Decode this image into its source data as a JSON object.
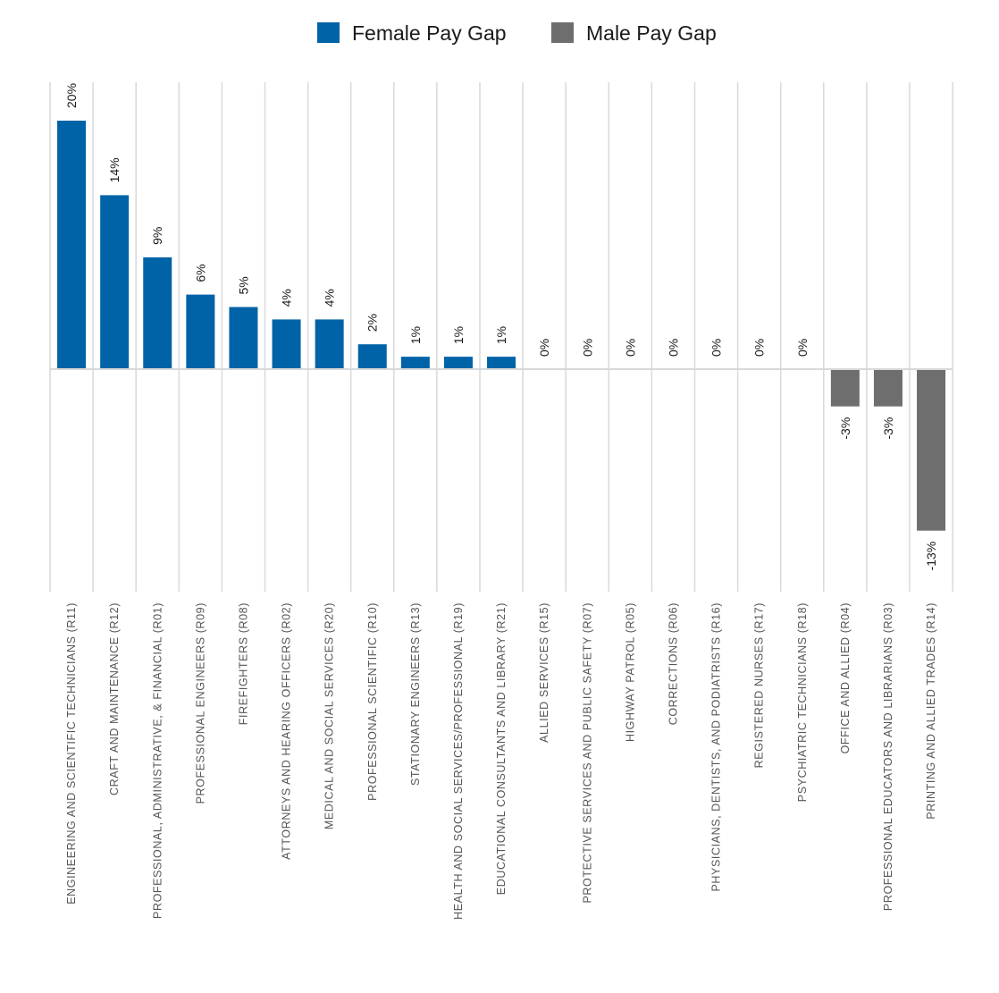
{
  "chart_data": {
    "type": "bar",
    "categories": [
      "ENGINEERING AND SCIENTIFIC TECHNICIANS  (R11)",
      "CRAFT AND MAINTENANCE  (R12)",
      "PROFESSIONAL, ADMINISTRATIVE, & FINANCIAL  (R01)",
      "PROFESSIONAL ENGINEERS  (R09)",
      "FIREFIGHTERS  (R08)",
      "ATTORNEYS AND HEARING OFFICERS  (R02)",
      "MEDICAL AND SOCIAL SERVICES  (R20)",
      "PROFESSIONAL SCIENTIFIC  (R10)",
      "STATIONARY ENGINEERS  (R13)",
      "HEALTH AND SOCIAL SERVICES/PROFESSIONAL  (R19)",
      "EDUCATIONAL CONSULTANTS AND LIBRARY  (R21)",
      "ALLIED SERVICES  (R15)",
      "PROTECTIVE SERVICES AND PUBLIC SAFETY  (R07)",
      "HIGHWAY PATROL  (R05)",
      "CORRECTIONS  (R06)",
      "PHYSICIANS, DENTISTS, AND PODIATRISTS  (R16)",
      "REGISTERED NURSES  (R17)",
      "PSYCHIATRIC TECHNICIANS  (R18)",
      "OFFICE AND ALLIED  (R04)",
      "PROFESSIONAL EDUCATORS AND LIBRARIANS  (R03)",
      "PRINTING AND ALLIED TRADES  (R14)"
    ],
    "values": [
      20,
      14,
      9,
      6,
      5,
      4,
      4,
      2,
      1,
      1,
      1,
      0,
      0,
      0,
      0,
      0,
      0,
      0,
      -3,
      -3,
      -13
    ],
    "value_labels": [
      "20%",
      "14%",
      "9%",
      "6%",
      "5%",
      "4%",
      "4%",
      "2%",
      "1%",
      "1%",
      "1%",
      "0%",
      "0%",
      "0%",
      "0%",
      "0%",
      "0%",
      "0%",
      "-3%",
      "-3%",
      "-13%"
    ],
    "series_colors": {
      "female": "#0063a7",
      "male": "#6e6e6f"
    },
    "legend": [
      {
        "label": "Female Pay Gap",
        "color": "#0063a7"
      },
      {
        "label": "Male Pay Gap",
        "color": "#6e6e6f"
      }
    ],
    "legend_position": "top-center",
    "ylim": [
      -18,
      23
    ],
    "grid": "vertical-category-lines",
    "title": "",
    "xlabel": "",
    "ylabel": ""
  }
}
